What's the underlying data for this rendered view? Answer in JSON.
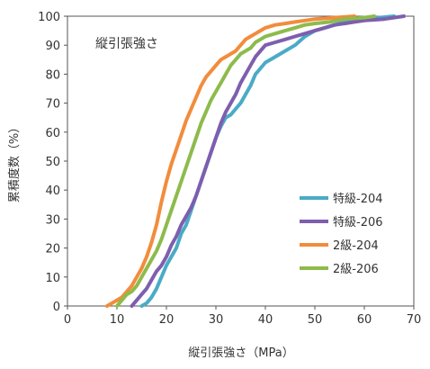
{
  "chart_data": {
    "type": "line",
    "title": "縦引張強さ",
    "xlabel": "縦引張強さ（MPa）",
    "ylabel": "累積度数（%）",
    "xlim": [
      0,
      70
    ],
    "ylim": [
      0,
      100
    ],
    "x_ticks": [
      0,
      10,
      20,
      30,
      40,
      50,
      60,
      70
    ],
    "y_ticks": [
      0,
      10,
      20,
      30,
      40,
      50,
      60,
      70,
      80,
      90,
      100
    ],
    "grid": false,
    "legend_position": "right-middle",
    "series": [
      {
        "name": "特級-204",
        "color": "#4aabc6",
        "points": [
          [
            15,
            0
          ],
          [
            16,
            1
          ],
          [
            17,
            3
          ],
          [
            18,
            6
          ],
          [
            19,
            10
          ],
          [
            20,
            14
          ],
          [
            21,
            17
          ],
          [
            22,
            20
          ],
          [
            23,
            25
          ],
          [
            24,
            28
          ],
          [
            25,
            33
          ],
          [
            26,
            38
          ],
          [
            27,
            43
          ],
          [
            28,
            48
          ],
          [
            29,
            53
          ],
          [
            30,
            58
          ],
          [
            31,
            62
          ],
          [
            32,
            65
          ],
          [
            33,
            66
          ],
          [
            34,
            68
          ],
          [
            35,
            70
          ],
          [
            36,
            73
          ],
          [
            37,
            76
          ],
          [
            38,
            80
          ],
          [
            39,
            82
          ],
          [
            40,
            84
          ],
          [
            42,
            86
          ],
          [
            44,
            88
          ],
          [
            46,
            90
          ],
          [
            48,
            93
          ],
          [
            50,
            95
          ],
          [
            52,
            96
          ],
          [
            54,
            97
          ],
          [
            56,
            98
          ],
          [
            58,
            98.5
          ],
          [
            60,
            99
          ],
          [
            63,
            99.5
          ],
          [
            66,
            100
          ]
        ]
      },
      {
        "name": "特級-206",
        "color": "#7e5eae",
        "points": [
          [
            13,
            0
          ],
          [
            14,
            2
          ],
          [
            15,
            4
          ],
          [
            16,
            6
          ],
          [
            17,
            9
          ],
          [
            18,
            12
          ],
          [
            19,
            14
          ],
          [
            20,
            17
          ],
          [
            21,
            21
          ],
          [
            22,
            24
          ],
          [
            23,
            28
          ],
          [
            24,
            31
          ],
          [
            25,
            34
          ],
          [
            26,
            38
          ],
          [
            27,
            43
          ],
          [
            28,
            48
          ],
          [
            29,
            53
          ],
          [
            30,
            58
          ],
          [
            31,
            63
          ],
          [
            32,
            67
          ],
          [
            33,
            70
          ],
          [
            34,
            73
          ],
          [
            35,
            77
          ],
          [
            36,
            80
          ],
          [
            37,
            83
          ],
          [
            38,
            86
          ],
          [
            39,
            88
          ],
          [
            40,
            90
          ],
          [
            42,
            91
          ],
          [
            44,
            92
          ],
          [
            46,
            93
          ],
          [
            48,
            94
          ],
          [
            50,
            95
          ],
          [
            52,
            96
          ],
          [
            54,
            97
          ],
          [
            56,
            97.5
          ],
          [
            58,
            98
          ],
          [
            60,
            98.5
          ],
          [
            64,
            99
          ],
          [
            68,
            100
          ]
        ]
      },
      {
        "name": "2級-204",
        "color": "#f28c3c",
        "points": [
          [
            8,
            0
          ],
          [
            9,
            1
          ],
          [
            10,
            2
          ],
          [
            11,
            3
          ],
          [
            12,
            5
          ],
          [
            13,
            7
          ],
          [
            14,
            10
          ],
          [
            15,
            13
          ],
          [
            16,
            17
          ],
          [
            17,
            22
          ],
          [
            18,
            28
          ],
          [
            19,
            36
          ],
          [
            20,
            43
          ],
          [
            21,
            49
          ],
          [
            22,
            54
          ],
          [
            23,
            59
          ],
          [
            24,
            64
          ],
          [
            25,
            68
          ],
          [
            26,
            72
          ],
          [
            27,
            76
          ],
          [
            28,
            79
          ],
          [
            29,
            81
          ],
          [
            30,
            83
          ],
          [
            31,
            85
          ],
          [
            32,
            86
          ],
          [
            33,
            87
          ],
          [
            34,
            88
          ],
          [
            35,
            90
          ],
          [
            36,
            92
          ],
          [
            37,
            93
          ],
          [
            38,
            94
          ],
          [
            39,
            95
          ],
          [
            40,
            96
          ],
          [
            42,
            97
          ],
          [
            44,
            97.5
          ],
          [
            46,
            98
          ],
          [
            48,
            98.5
          ],
          [
            50,
            99
          ],
          [
            54,
            99.5
          ],
          [
            58,
            100
          ]
        ]
      },
      {
        "name": "2級-206",
        "color": "#8dbb4c",
        "points": [
          [
            10,
            0
          ],
          [
            11,
            2
          ],
          [
            12,
            4
          ],
          [
            13,
            5
          ],
          [
            14,
            7
          ],
          [
            15,
            10
          ],
          [
            16,
            13
          ],
          [
            17,
            16
          ],
          [
            18,
            19
          ],
          [
            19,
            23
          ],
          [
            20,
            28
          ],
          [
            21,
            33
          ],
          [
            22,
            38
          ],
          [
            23,
            43
          ],
          [
            24,
            48
          ],
          [
            25,
            53
          ],
          [
            26,
            58
          ],
          [
            27,
            63
          ],
          [
            28,
            67
          ],
          [
            29,
            71
          ],
          [
            30,
            74
          ],
          [
            31,
            77
          ],
          [
            32,
            80
          ],
          [
            33,
            83
          ],
          [
            34,
            85
          ],
          [
            35,
            87
          ],
          [
            36,
            88
          ],
          [
            37,
            89
          ],
          [
            38,
            91
          ],
          [
            39,
            92
          ],
          [
            40,
            93
          ],
          [
            42,
            94
          ],
          [
            44,
            95
          ],
          [
            46,
            96
          ],
          [
            48,
            97
          ],
          [
            50,
            97.5
          ],
          [
            53,
            98
          ],
          [
            56,
            99
          ],
          [
            60,
            99.5
          ],
          [
            62,
            100
          ]
        ]
      }
    ]
  }
}
